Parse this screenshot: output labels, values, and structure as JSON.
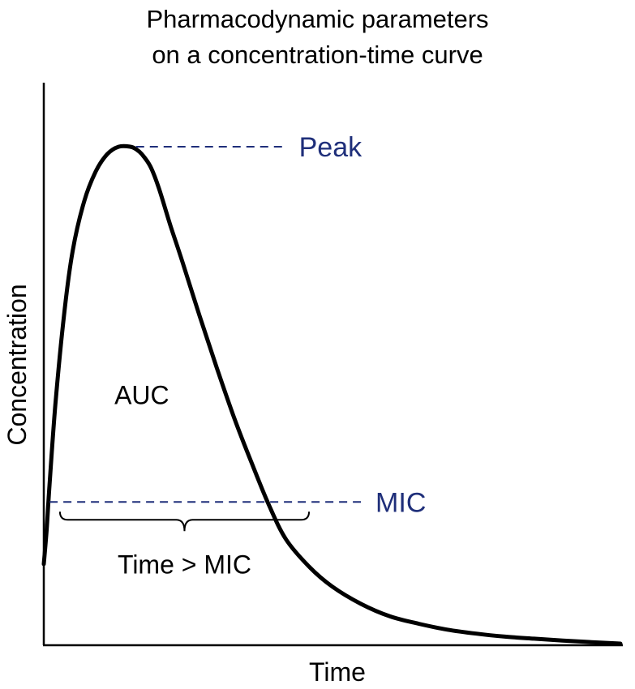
{
  "chart_data": {
    "type": "line",
    "title_line1": "Pharmacodynamic parameters",
    "title_line2": "on a concentration-time curve",
    "xlabel": "Time",
    "ylabel": "Concentration",
    "xlim": [
      0,
      10
    ],
    "ylim": [
      0,
      10
    ],
    "grid": false,
    "series": [
      {
        "name": "concentration",
        "x": [
          0,
          0.05,
          0.1,
          0.2,
          0.35,
          0.5,
          0.7,
          0.9,
          1.1,
          1.3,
          1.5,
          1.6,
          1.7,
          1.85,
          2.0,
          2.2,
          2.4,
          2.7,
          3.0,
          3.3,
          3.6,
          3.9,
          4.2,
          4.6,
          5.0,
          5.5,
          6.0,
          6.5,
          7.0,
          7.5,
          8.0,
          8.5,
          9.0,
          9.5,
          10.0
        ],
        "values": [
          1.6,
          2.3,
          3.2,
          4.8,
          6.6,
          7.9,
          8.9,
          9.5,
          9.85,
          10.0,
          10.0,
          9.95,
          9.85,
          9.6,
          9.15,
          8.4,
          7.7,
          6.6,
          5.55,
          4.55,
          3.65,
          2.8,
          2.1,
          1.55,
          1.15,
          0.8,
          0.55,
          0.4,
          0.28,
          0.2,
          0.14,
          0.1,
          0.06,
          0.03,
          0.0
        ]
      }
    ],
    "reference_lines": [
      {
        "name": "Peak",
        "label": "Peak",
        "y": 10.0,
        "x_start": 1.6,
        "x_end": 4.2,
        "color": "#1f2f7a"
      },
      {
        "name": "MIC",
        "label": "MIC",
        "y": 2.85,
        "x_start": 0.1,
        "x_end": 5.5,
        "color": "#1f2f7a"
      }
    ],
    "annotations": [
      {
        "name": "auc",
        "text": "AUC",
        "x": 1.7,
        "y": 5.0
      },
      {
        "name": "time-above-mic",
        "text": "Time > MIC",
        "x_start": 0.28,
        "x_end": 4.6,
        "y": 1.65
      }
    ]
  },
  "colors": {
    "curve": "#000000",
    "reference": "#1f2f7a",
    "axis": "#000000"
  }
}
